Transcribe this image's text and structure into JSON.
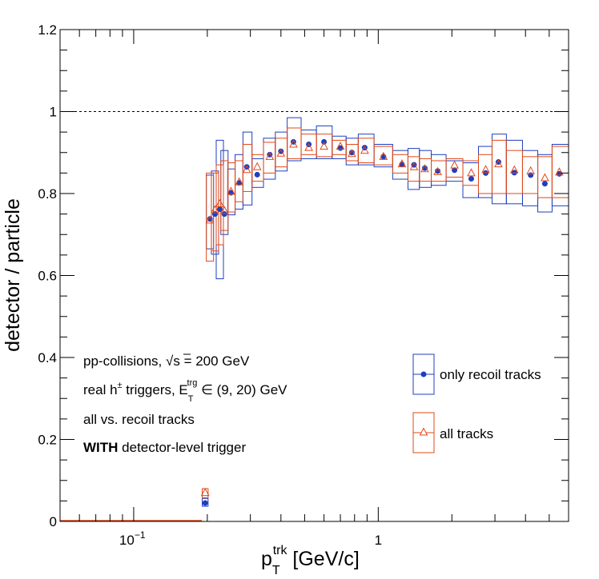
{
  "chart_data": {
    "type": "scatter",
    "xscale": "log",
    "xlim": [
      0.05,
      6.0
    ],
    "ylim": [
      0,
      1.2
    ],
    "reference_line": 1.0,
    "x_tick_labels": [
      {
        "value": 0.1,
        "base": "10",
        "exp": "−1"
      },
      {
        "value": 1,
        "text": "1"
      }
    ],
    "y_ticks": [
      0,
      0.2,
      0.4,
      0.6,
      0.8,
      1,
      1.2
    ],
    "y_tick_labels": [
      "0",
      "0.2",
      "0.4",
      "0.6",
      "0.8",
      "1",
      "1.2"
    ],
    "xlabel": {
      "main": "p",
      "sub": "T",
      "sup": "trk",
      "rest": " [GeV/c]"
    },
    "ylabel": "detector / particle",
    "annotations": [
      {
        "pre": "pp-collisions, ",
        "sqrt": "s",
        "post": " = 200 GeV"
      },
      {
        "pre": "real h",
        "sup1": "±",
        "mid": " triggers, E",
        "sub": "T",
        "sup2": "trg",
        "post": " ∈ (9, 20) GeV"
      },
      {
        "text": "all vs. recoil tracks"
      },
      {
        "bold": "WITH",
        "text": " detector-level trigger"
      }
    ],
    "legend_placement": "bottom-right",
    "series": [
      {
        "name": "only recoil tracks",
        "color": "#1f3fbf",
        "marker": "circle",
        "points": [
          [
            0.196,
            0.045,
            0.037,
            0.056
          ],
          [
            0.205,
            0.738,
            0.665,
            0.845
          ],
          [
            0.215,
            0.75,
            0.652,
            0.855
          ],
          [
            0.225,
            0.762,
            0.592,
            0.93
          ],
          [
            0.235,
            0.75,
            0.7,
            0.905
          ],
          [
            0.25,
            0.802,
            0.748,
            0.86
          ],
          [
            0.27,
            0.826,
            0.762,
            0.895
          ],
          [
            0.29,
            0.865,
            0.772,
            0.95
          ],
          [
            0.32,
            0.846,
            0.815,
            0.885
          ],
          [
            0.36,
            0.895,
            0.835,
            0.935
          ],
          [
            0.4,
            0.903,
            0.855,
            0.95
          ],
          [
            0.45,
            0.926,
            0.88,
            0.985
          ],
          [
            0.52,
            0.92,
            0.885,
            0.955
          ],
          [
            0.6,
            0.926,
            0.885,
            0.965
          ],
          [
            0.7,
            0.911,
            0.885,
            0.94
          ],
          [
            0.78,
            0.9,
            0.87,
            0.935
          ],
          [
            0.88,
            0.912,
            0.87,
            0.945
          ],
          [
            1.05,
            0.89,
            0.865,
            0.92
          ],
          [
            1.25,
            0.871,
            0.835,
            0.905
          ],
          [
            1.4,
            0.87,
            0.81,
            0.91
          ],
          [
            1.55,
            0.862,
            0.815,
            0.905
          ],
          [
            1.75,
            0.855,
            0.82,
            0.895
          ],
          [
            2.05,
            0.857,
            0.83,
            0.88
          ],
          [
            2.4,
            0.836,
            0.79,
            0.875
          ],
          [
            2.75,
            0.85,
            0.79,
            0.915
          ],
          [
            3.1,
            0.877,
            0.775,
            0.945
          ],
          [
            3.6,
            0.851,
            0.775,
            0.93
          ],
          [
            4.2,
            0.845,
            0.77,
            0.905
          ],
          [
            4.8,
            0.824,
            0.755,
            0.895
          ],
          [
            5.5,
            0.848,
            0.77,
            0.92
          ]
        ]
      },
      {
        "name": "all tracks",
        "color": "#e04818",
        "marker": "triangle",
        "points": [
          [
            0.196,
            0.07,
            0.058,
            0.08
          ],
          [
            0.205,
            0.735,
            0.635,
            0.85
          ],
          [
            0.215,
            0.76,
            0.66,
            0.85
          ],
          [
            0.225,
            0.775,
            0.675,
            0.87
          ],
          [
            0.235,
            0.758,
            0.71,
            0.88
          ],
          [
            0.25,
            0.805,
            0.755,
            0.875
          ],
          [
            0.27,
            0.828,
            0.78,
            0.88
          ],
          [
            0.29,
            0.858,
            0.805,
            0.92
          ],
          [
            0.32,
            0.865,
            0.83,
            0.895
          ],
          [
            0.36,
            0.89,
            0.85,
            0.925
          ],
          [
            0.4,
            0.898,
            0.865,
            0.935
          ],
          [
            0.45,
            0.92,
            0.885,
            0.96
          ],
          [
            0.52,
            0.912,
            0.895,
            0.945
          ],
          [
            0.6,
            0.915,
            0.89,
            0.945
          ],
          [
            0.7,
            0.915,
            0.895,
            0.93
          ],
          [
            0.78,
            0.897,
            0.88,
            0.92
          ],
          [
            0.88,
            0.905,
            0.875,
            0.935
          ],
          [
            1.05,
            0.89,
            0.87,
            0.915
          ],
          [
            1.25,
            0.872,
            0.85,
            0.895
          ],
          [
            1.4,
            0.865,
            0.83,
            0.89
          ],
          [
            1.55,
            0.86,
            0.83,
            0.885
          ],
          [
            1.75,
            0.853,
            0.83,
            0.88
          ],
          [
            2.05,
            0.869,
            0.84,
            0.885
          ],
          [
            2.4,
            0.85,
            0.82,
            0.88
          ],
          [
            2.75,
            0.858,
            0.8,
            0.895
          ],
          [
            3.1,
            0.872,
            0.8,
            0.93
          ],
          [
            3.6,
            0.857,
            0.8,
            0.905
          ],
          [
            4.2,
            0.855,
            0.8,
            0.89
          ],
          [
            4.8,
            0.838,
            0.79,
            0.89
          ],
          [
            5.5,
            0.852,
            0.79,
            0.915
          ]
        ]
      }
    ]
  }
}
